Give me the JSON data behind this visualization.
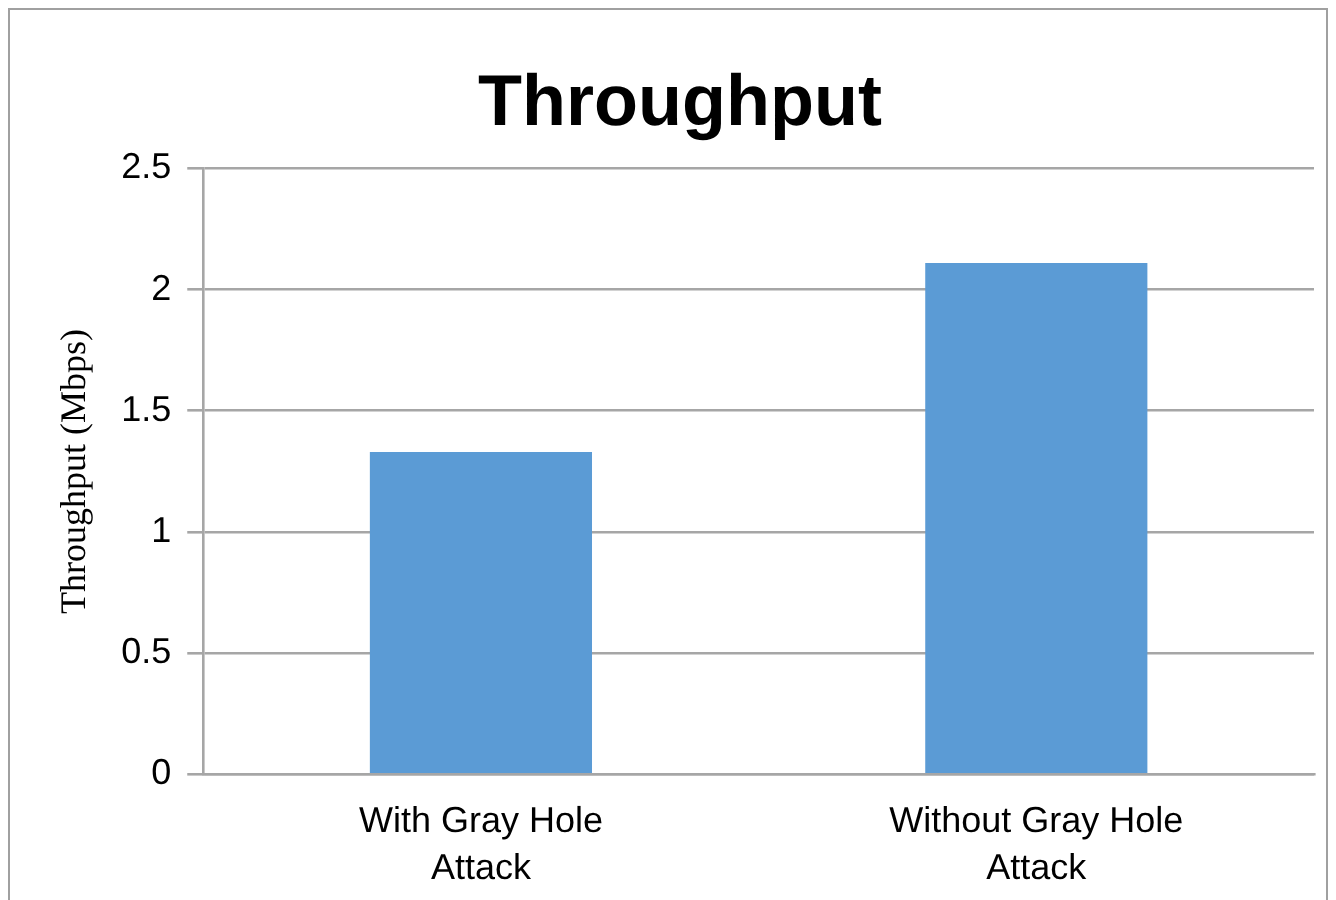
{
  "chart_data": {
    "type": "bar",
    "title": "Throughput",
    "ylabel": "Throughput (Mbps)",
    "categories": [
      "With Gray Hole Attack",
      "Without Gray Hole Attack"
    ],
    "values": [
      1.33,
      2.11
    ],
    "color": "#5b9bd5",
    "ylim": [
      0,
      2.5
    ],
    "yticks": [
      0,
      0.5,
      1,
      1.5,
      2,
      2.5
    ],
    "grid": "y",
    "legend": false
  }
}
